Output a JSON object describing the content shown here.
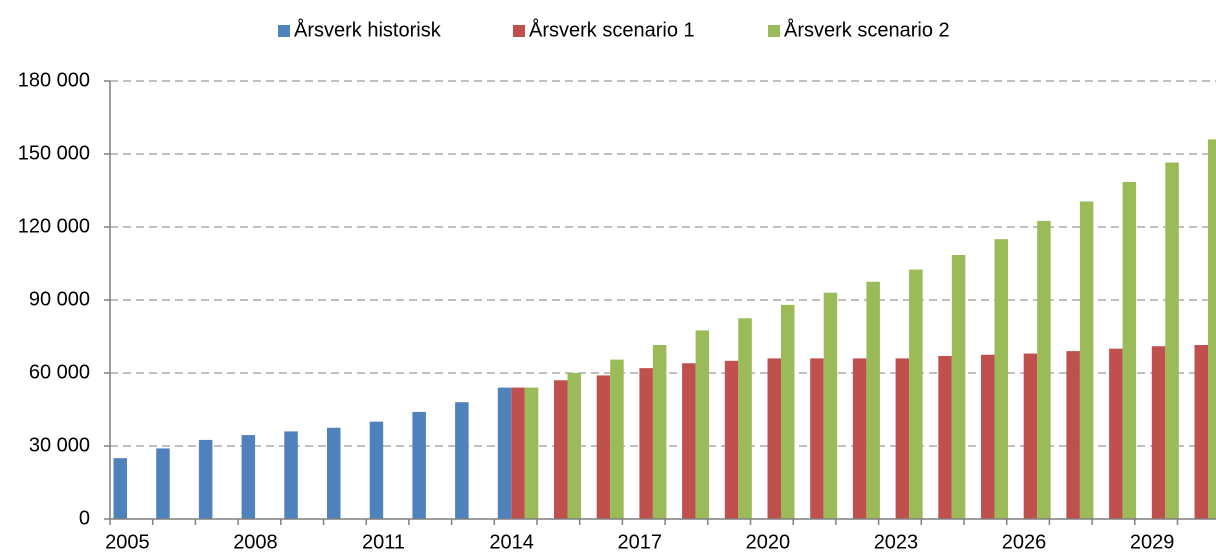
{
  "chart_data": {
    "type": "bar",
    "categories": [
      "2005",
      null,
      null,
      "2008",
      null,
      null,
      "2011",
      null,
      null,
      "2014",
      null,
      null,
      "2017",
      null,
      null,
      "2020",
      null,
      null,
      "2023",
      null,
      null,
      "2026",
      null,
      null,
      "2029",
      null
    ],
    "series": [
      {
        "name": "Årsverk historisk",
        "color": "#4f81bd",
        "values": [
          25000,
          29000,
          32500,
          34500,
          36000,
          37500,
          40000,
          44000,
          48000,
          54000,
          null,
          null,
          null,
          null,
          null,
          null,
          null,
          null,
          null,
          null,
          null,
          null,
          null,
          null,
          null,
          null
        ]
      },
      {
        "name": "Årsverk scenario 1",
        "color": "#c0504d",
        "values": [
          null,
          null,
          null,
          null,
          null,
          null,
          null,
          null,
          null,
          54000,
          57000,
          59000,
          62000,
          64000,
          65000,
          66000,
          66000,
          66000,
          66000,
          67000,
          67500,
          68000,
          69000,
          70000,
          71000,
          71500
        ]
      },
      {
        "name": "Årsverk scenario 2",
        "color": "#9bbb59",
        "values": [
          null,
          null,
          null,
          null,
          null,
          null,
          null,
          null,
          null,
          54000,
          60000,
          65500,
          71500,
          77500,
          82500,
          88000,
          93000,
          97500,
          102500,
          108500,
          115000,
          122500,
          130500,
          138500,
          146500,
          156000
        ]
      }
    ],
    "ylim": [
      0,
      180000
    ],
    "yticks": [
      0,
      {
        "value": 30000,
        "label": "30 000"
      },
      {
        "value": 60000,
        "label": "60 000"
      },
      {
        "value": 90000,
        "label": "90 000"
      },
      {
        "value": 120000,
        "label": "120 000"
      },
      {
        "value": 150000,
        "label": "150 000"
      },
      {
        "value": 180000,
        "label": "180 000"
      }
    ],
    "grid": true,
    "legend": "top"
  }
}
